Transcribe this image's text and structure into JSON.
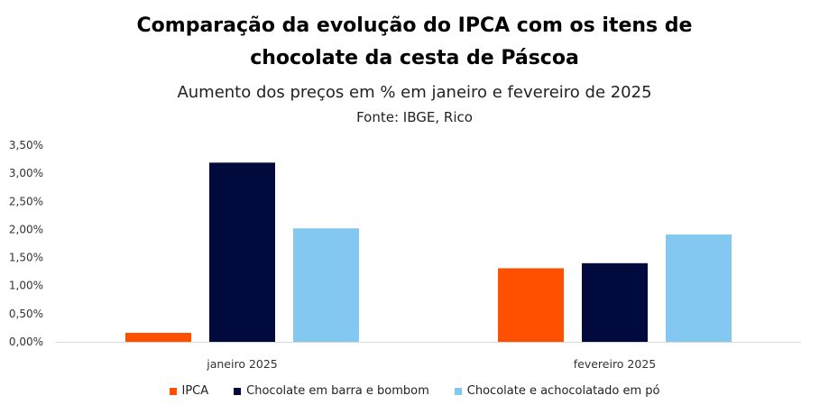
{
  "chart_data": {
    "type": "bar",
    "title_line1": "Comparação da evolução do IPCA com os itens de",
    "title_line2": "chocolate da cesta de Páscoa",
    "subtitle": "Aumento dos preços em % em janeiro e fevereiro de 2025",
    "source": "Fonte: IBGE, Rico",
    "categories": [
      "janeiro 2025",
      "fevereiro 2025"
    ],
    "series": [
      {
        "name": "IPCA",
        "color": "#ff5000",
        "values": [
          0.16,
          1.31
        ]
      },
      {
        "name": "Chocolate em barra e bombom",
        "color": "#000a3c",
        "values": [
          3.19,
          1.4
        ]
      },
      {
        "name": "Chocolate e achocolatado em pó",
        "color": "#82c8f0",
        "values": [
          2.02,
          1.91
        ]
      }
    ],
    "ylim": [
      0,
      3.5
    ],
    "yticks": [
      "0,00%",
      "0,50%",
      "1,00%",
      "1,50%",
      "2,00%",
      "2,50%",
      "3,00%",
      "3,50%"
    ],
    "grid": false,
    "legend_position": "bottom"
  }
}
